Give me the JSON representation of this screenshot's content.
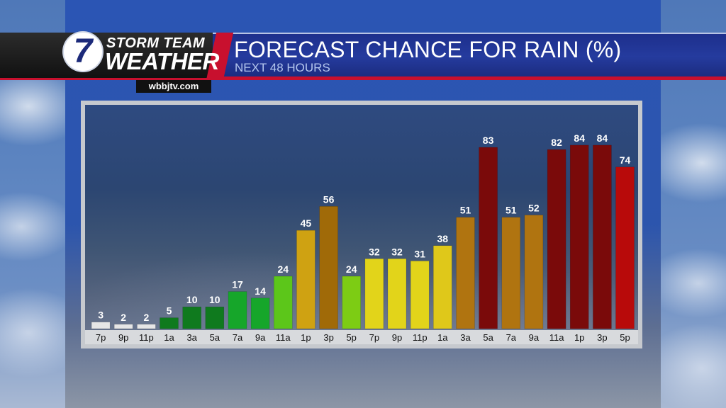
{
  "header": {
    "logo_number": "7",
    "logo_line1": "STORM TEAM",
    "logo_line2": "WEATHER",
    "site": "wbbjtv.com"
  },
  "chart_data": {
    "type": "bar",
    "title": "FORECAST CHANCE FOR RAIN (%)",
    "subtitle": "NEXT 48 HOURS",
    "xlabel": "",
    "ylabel": "",
    "ylim": [
      0,
      100
    ],
    "grid": false,
    "categories": [
      "7p",
      "9p",
      "11p",
      "1a",
      "3a",
      "5a",
      "7a",
      "9a",
      "11a",
      "1p",
      "3p",
      "5p",
      "7p",
      "9p",
      "11p",
      "1a",
      "3a",
      "5a",
      "7a",
      "9a",
      "11a",
      "1p",
      "3p",
      "5p"
    ],
    "values": [
      3,
      2,
      2,
      5,
      10,
      10,
      17,
      14,
      24,
      45,
      56,
      24,
      32,
      32,
      31,
      38,
      51,
      83,
      51,
      52,
      82,
      84,
      84,
      74
    ],
    "colors": [
      "#e6e6e6",
      "#e6e6e6",
      "#e6e6e6",
      "#0f7a1e",
      "#0f7a1e",
      "#0f7a1e",
      "#16a62a",
      "#16a62a",
      "#5cc61a",
      "#cfa212",
      "#a06a08",
      "#7dcc14",
      "#e2d41a",
      "#e2d41a",
      "#e2d41a",
      "#dfc81a",
      "#b07410",
      "#7a0a0a",
      "#b07410",
      "#b07410",
      "#7a0a0a",
      "#7a0a0a",
      "#7a0a0a",
      "#b80a0a"
    ]
  }
}
